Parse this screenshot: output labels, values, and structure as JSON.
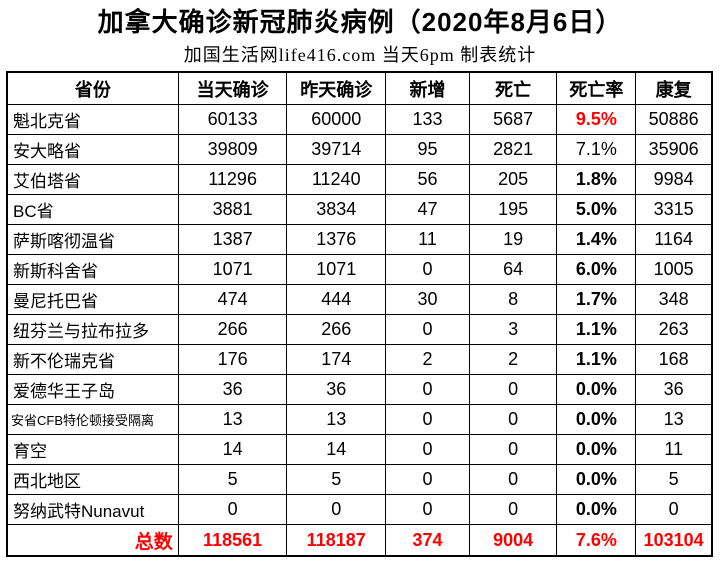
{
  "colors": {
    "accent_red": "#FF0000",
    "text": "#000000",
    "border": "#000000",
    "background": "#FFFFFF"
  },
  "chart_data": {
    "type": "table",
    "title": "加拿大确诊新冠肺炎病例（2020年8月6日）",
    "subtitle": "加国生活网life416.com 当天6pm 制表统计",
    "columns": [
      "省份",
      "当天确诊",
      "昨天确诊",
      "新增",
      "死亡",
      "死亡率",
      "康复"
    ],
    "rows": [
      [
        "魁北克省",
        "60133",
        "60000",
        "133",
        "5687",
        "9.5%",
        "50886"
      ],
      [
        "安大略省",
        "39809",
        "39714",
        "95",
        "2821",
        "7.1%",
        "35906"
      ],
      [
        "艾伯塔省",
        "11296",
        "11240",
        "56",
        "205",
        "1.8%",
        "9984"
      ],
      [
        "BC省",
        "3881",
        "3834",
        "47",
        "195",
        "5.0%",
        "3315"
      ],
      [
        "萨斯喀彻温省",
        "1387",
        "1376",
        "11",
        "19",
        "1.4%",
        "1164"
      ],
      [
        "新斯科舍省",
        "1071",
        "1071",
        "0",
        "64",
        "6.0%",
        "1005"
      ],
      [
        "曼尼托巴省",
        "474",
        "444",
        "30",
        "8",
        "1.7%",
        "348"
      ],
      [
        "纽芬兰与拉布拉多",
        "266",
        "266",
        "0",
        "3",
        "1.1%",
        "263"
      ],
      [
        "新不伦瑞克省",
        "176",
        "174",
        "2",
        "2",
        "1.1%",
        "168"
      ],
      [
        "爱德华王子岛",
        "36",
        "36",
        "0",
        "0",
        "0.0%",
        "36"
      ],
      [
        "安省CFB特伦顿接受隔离",
        "13",
        "13",
        "0",
        "0",
        "0.0%",
        "13"
      ],
      [
        "育空",
        "14",
        "14",
        "0",
        "0",
        "0.0%",
        "11"
      ],
      [
        "西北地区",
        "5",
        "5",
        "0",
        "0",
        "0.0%",
        "5"
      ],
      [
        "努纳武特Nunavut",
        "0",
        "0",
        "0",
        "0",
        "0.0%",
        "0"
      ]
    ],
    "total_row": [
      "总数",
      "118561",
      "118187",
      "374",
      "9004",
      "7.6%",
      "103104"
    ],
    "rate_styles": [
      "red-bold",
      "regular",
      "bold",
      "bold",
      "bold",
      "bold",
      "bold",
      "bold",
      "bold",
      "bold",
      "bold",
      "bold",
      "bold",
      "bold"
    ],
    "small_label_rows": [
      10
    ],
    "total_row_color": "#FF0000",
    "quebec_rate_color": "#FF0000",
    "legend_position": "none",
    "grid": "on"
  }
}
